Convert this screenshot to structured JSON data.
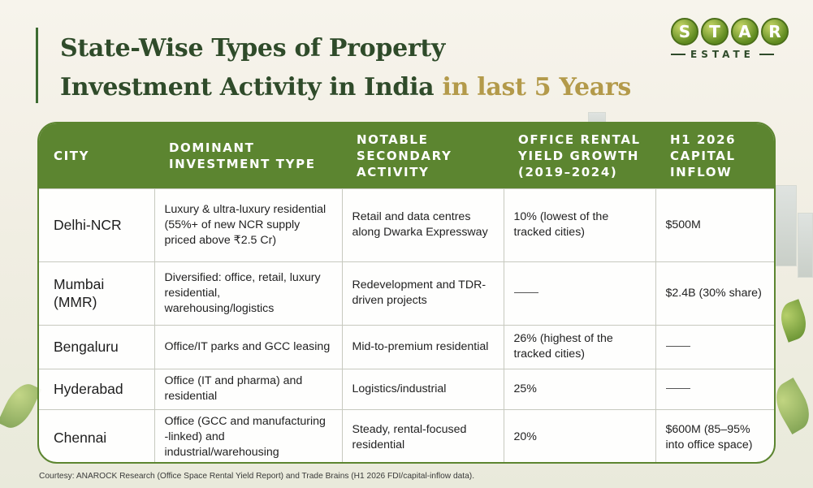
{
  "brand": {
    "letters": [
      "S",
      "T",
      "A",
      "R"
    ],
    "sub": "ESTATE"
  },
  "title": {
    "line1": "State-Wise Types of Property",
    "line2_main": "Investment Activity in India",
    "line2_highlight": "in last 5 Years"
  },
  "table": {
    "headers": [
      "CITY",
      "DOMINANT INVESTMENT TYPE",
      "NOTABLE SECONDARY ACTIVITY",
      "OFFICE RENTAL YIELD GROWTH (2019–2024)",
      "H1 2026 CAPITAL INFLOW"
    ],
    "rows": [
      {
        "city": "Delhi-NCR",
        "dominant": "Luxury & ultra-luxury residential (55%+ of new NCR supply priced above ₹2.5 Cr)",
        "secondary": "Retail and data centres along Dwarka Expressway",
        "yield": "10% (lowest of the tracked cities)",
        "inflow": "$500M"
      },
      {
        "city": "Mumbai (MMR)",
        "dominant": "Diversified: office, retail, luxury residential, warehousing/logistics",
        "secondary": "Redevelopment and TDR-driven projects",
        "yield": "",
        "inflow": "$2.4B (30% share)"
      },
      {
        "city": "Bengaluru",
        "dominant": "Office/IT parks and GCC leasing",
        "secondary": "Mid-to-premium residential",
        "yield": "26% (highest of the tracked cities)",
        "inflow": ""
      },
      {
        "city": "Hyderabad",
        "dominant": "Office (IT and pharma) and residential",
        "secondary": "Logistics/industrial",
        "yield": "25%",
        "inflow": ""
      },
      {
        "city": "Chennai",
        "dominant": "Office (GCC and manufacturing -linked) and industrial/warehousing",
        "secondary": "Steady, rental-focused residential",
        "yield": "20%",
        "inflow": "$600M (85–95% into office space)"
      }
    ]
  },
  "source": "Courtesy: ANAROCK Research (Office Space Rental Yield Report) and Trade Brains (H1 2026 FDI/capital-inflow data).",
  "colors": {
    "header_green": "#5c8530",
    "title_green": "#2f4b2a",
    "highlight_gold": "#b39a4a"
  }
}
